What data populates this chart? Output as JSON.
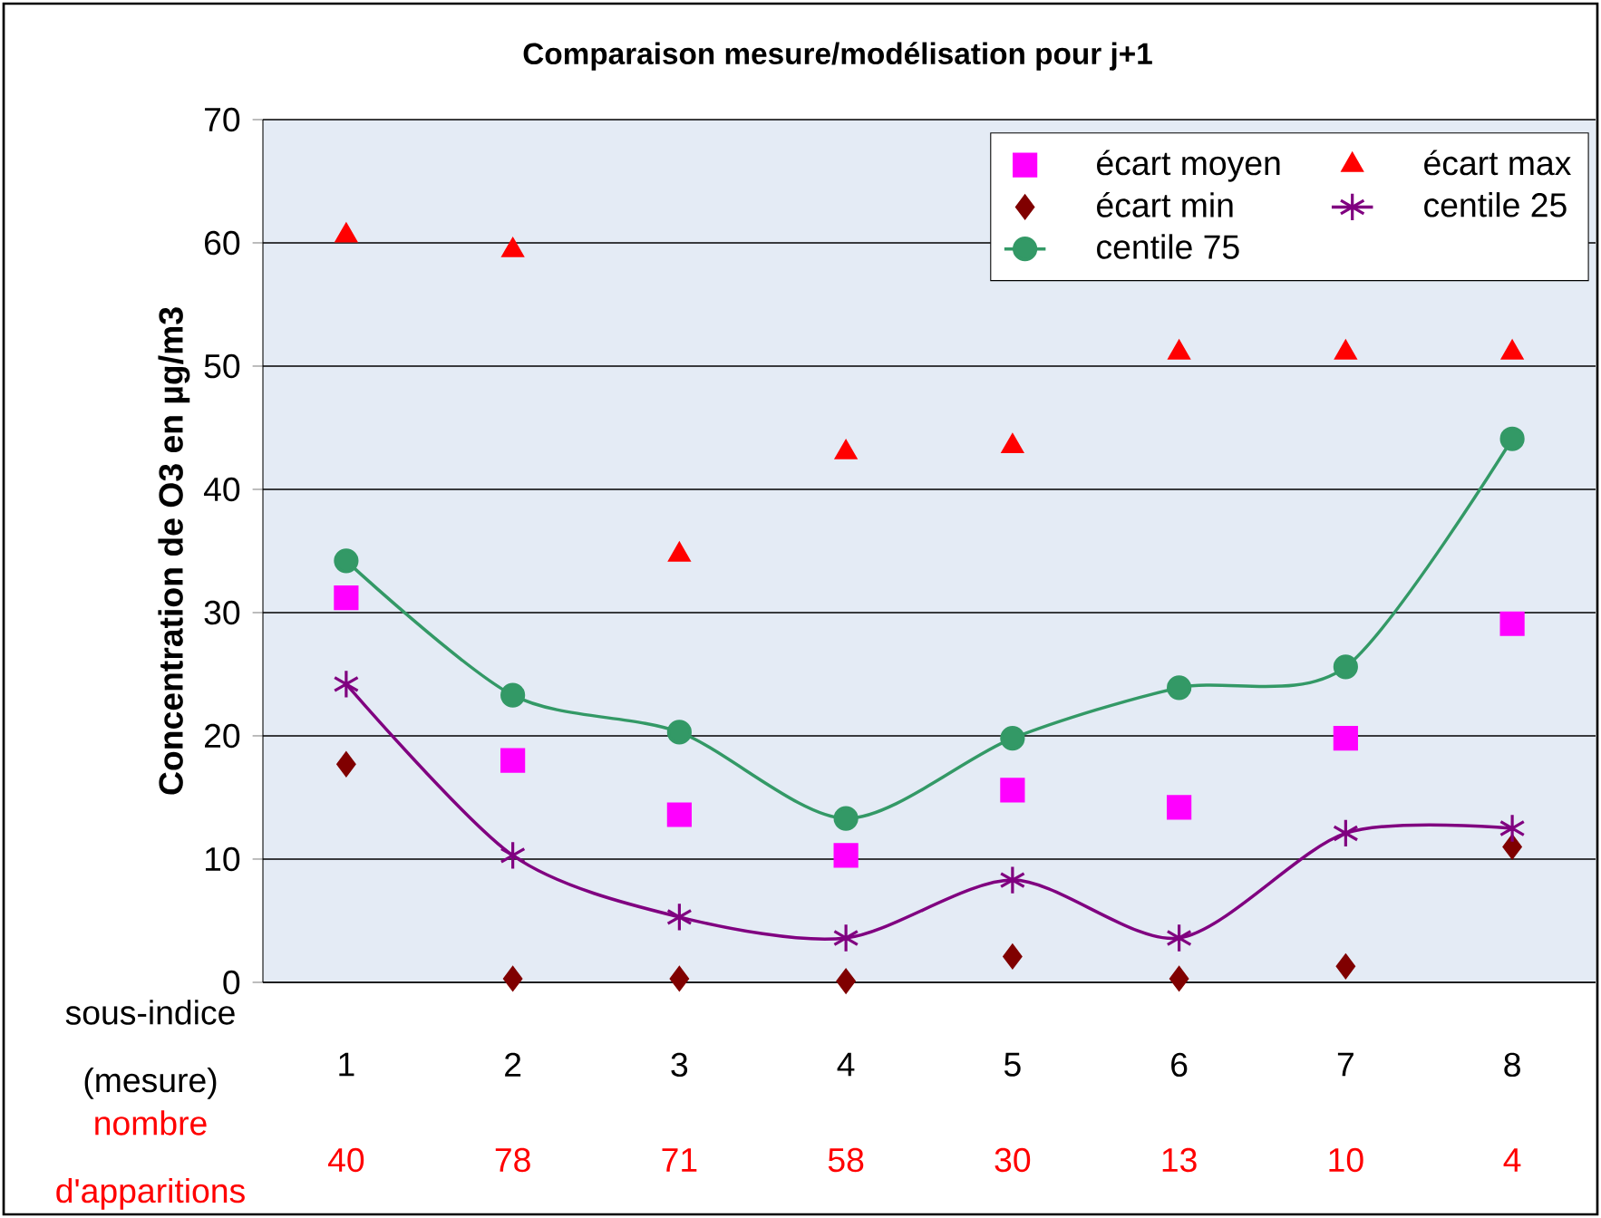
{
  "chart_data": {
    "type": "scatter",
    "title": "Comparaison mesure/modélisation pour j+1",
    "ylabel": "Concentration de O3 en µg/m3",
    "categories": [
      "1",
      "2",
      "3",
      "4",
      "5",
      "6",
      "7",
      "8"
    ],
    "series": [
      {
        "name": "écart moyen",
        "marker": "square",
        "color": "#ff00ff",
        "values": [
          31.2,
          18.0,
          13.6,
          10.3,
          15.6,
          14.2,
          19.8,
          29.1
        ]
      },
      {
        "name": "écart max",
        "marker": "triangle",
        "color": "#ff0000",
        "values": [
          60.6,
          59.4,
          34.7,
          43.0,
          43.5,
          51.1,
          51.1,
          51.1
        ]
      },
      {
        "name": "écart min",
        "marker": "diamond",
        "color": "#800000",
        "values": [
          17.7,
          0.3,
          0.3,
          0.1,
          2.1,
          0.3,
          1.3,
          11.0
        ]
      },
      {
        "name": "centile 25",
        "type": "line",
        "marker": "cross",
        "color": "#800080",
        "values": [
          24.2,
          10.3,
          5.3,
          3.6,
          8.3,
          3.6,
          12.1,
          12.5
        ]
      },
      {
        "name": "centile 75",
        "type": "line",
        "marker": "circle",
        "color": "#339966",
        "values": [
          34.2,
          23.3,
          20.3,
          13.3,
          19.8,
          23.9,
          25.6,
          44.1
        ]
      }
    ],
    "ylim": [
      0,
      70
    ],
    "yticks": [
      0,
      10,
      20,
      30,
      40,
      50,
      60,
      70
    ],
    "grid": "y",
    "legend": "top right",
    "annotations": [
      "sous-indice (mesure)",
      "nombre d'apparitions",
      "40",
      "78",
      "71",
      "58",
      "30",
      "13",
      "10",
      "4"
    ]
  }
}
